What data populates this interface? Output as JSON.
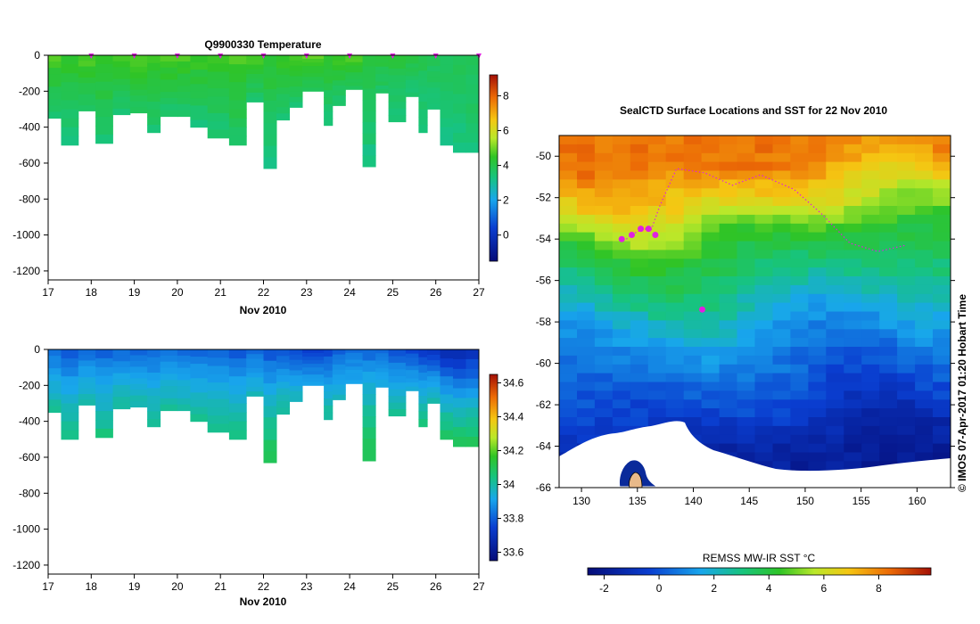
{
  "temperature": {
    "title": "Q9900330  Temperature",
    "x_ticks": [
      "17",
      "18",
      "19",
      "20",
      "21",
      "22",
      "23",
      "24",
      "25",
      "26",
      "27"
    ],
    "x_label": "Nov 2010",
    "y_ticks": [
      "0",
      "-200",
      "-400",
      "-600",
      "-800",
      "-1000",
      "-1200"
    ],
    "colorbar_ticks": [
      "8",
      "6",
      "4",
      "2",
      "0"
    ]
  },
  "salinity": {
    "x_ticks": [
      "17",
      "18",
      "19",
      "20",
      "21",
      "22",
      "23",
      "24",
      "25",
      "26",
      "27"
    ],
    "x_label": "Nov 2010",
    "y_ticks": [
      "0",
      "-200",
      "-400",
      "-600",
      "-800",
      "-1000",
      "-1200"
    ],
    "colorbar_ticks": [
      "34.6",
      "34.4",
      "34.2",
      "34",
      "33.8",
      "33.6"
    ]
  },
  "map": {
    "title": "SealCTD Surface Locations and SST for 22 Nov 2010",
    "lon_ticks": [
      "130",
      "135",
      "140",
      "145",
      "150",
      "155",
      "160"
    ],
    "lat_ticks": [
      "-50",
      "-52",
      "-54",
      "-56",
      "-58",
      "-60",
      "-62",
      "-64",
      "-66"
    ],
    "colorbar_label": "REMSS MW-IR SST °C",
    "colorbar_ticks": [
      "-2",
      "0",
      "2",
      "4",
      "6",
      "8"
    ],
    "credit": "© IMOS 07-Apr-2017 01:20 Hobart Time"
  },
  "chart_data": [
    {
      "type": "heatmap",
      "title": "Q9900330  Temperature",
      "xlabel": "Nov 2010",
      "ylabel": "",
      "xlim": [
        17,
        27
      ],
      "ylim": [
        -1250,
        0
      ],
      "color_range": [
        -1.5,
        9.2
      ],
      "profiles": [
        {
          "day": 17.0,
          "max_depth": 350,
          "surface_value": 4.8,
          "deep_value": 3.5
        },
        {
          "day": 17.3,
          "max_depth": 500,
          "surface_value": 4.6,
          "deep_value": 3.3
        },
        {
          "day": 17.7,
          "max_depth": 310,
          "surface_value": 4.9,
          "deep_value": 3.6
        },
        {
          "day": 18.1,
          "max_depth": 490,
          "surface_value": 4.7,
          "deep_value": 3.4
        },
        {
          "day": 18.5,
          "max_depth": 330,
          "surface_value": 4.8,
          "deep_value": 3.5
        },
        {
          "day": 18.9,
          "max_depth": 320,
          "surface_value": 4.9,
          "deep_value": 3.6
        },
        {
          "day": 19.3,
          "max_depth": 430,
          "surface_value": 4.8,
          "deep_value": 3.4
        },
        {
          "day": 19.6,
          "max_depth": 340,
          "surface_value": 4.9,
          "deep_value": 3.5
        },
        {
          "day": 20.0,
          "max_depth": 340,
          "surface_value": 4.8,
          "deep_value": 3.5
        },
        {
          "day": 20.3,
          "max_depth": 400,
          "surface_value": 4.7,
          "deep_value": 3.4
        },
        {
          "day": 20.7,
          "max_depth": 460,
          "surface_value": 4.8,
          "deep_value": 3.4
        },
        {
          "day": 21.2,
          "max_depth": 500,
          "surface_value": 4.9,
          "deep_value": 3.5
        },
        {
          "day": 21.6,
          "max_depth": 260,
          "surface_value": 4.8,
          "deep_value": 3.6
        },
        {
          "day": 22.0,
          "max_depth": 630,
          "surface_value": 4.5,
          "deep_value": 3.2
        },
        {
          "day": 22.3,
          "max_depth": 360,
          "surface_value": 4.7,
          "deep_value": 3.4
        },
        {
          "day": 22.6,
          "max_depth": 290,
          "surface_value": 4.8,
          "deep_value": 3.5
        },
        {
          "day": 22.9,
          "max_depth": 200,
          "surface_value": 4.9,
          "deep_value": 3.7
        },
        {
          "day": 23.4,
          "max_depth": 390,
          "surface_value": 4.6,
          "deep_value": 3.4
        },
        {
          "day": 23.6,
          "max_depth": 280,
          "surface_value": 4.7,
          "deep_value": 3.5
        },
        {
          "day": 23.9,
          "max_depth": 190,
          "surface_value": 4.9,
          "deep_value": 3.7
        },
        {
          "day": 24.3,
          "max_depth": 620,
          "surface_value": 4.4,
          "deep_value": 3.2
        },
        {
          "day": 24.6,
          "max_depth": 210,
          "surface_value": 4.3,
          "deep_value": 3.6
        },
        {
          "day": 24.9,
          "max_depth": 370,
          "surface_value": 4.2,
          "deep_value": 3.4
        },
        {
          "day": 25.3,
          "max_depth": 230,
          "surface_value": 4.1,
          "deep_value": 3.5
        },
        {
          "day": 25.6,
          "max_depth": 430,
          "surface_value": 4.0,
          "deep_value": 3.3
        },
        {
          "day": 25.8,
          "max_depth": 300,
          "surface_value": 4.0,
          "deep_value": 3.4
        },
        {
          "day": 26.1,
          "max_depth": 500,
          "surface_value": 3.9,
          "deep_value": 3.3
        },
        {
          "day": 26.4,
          "max_depth": 540,
          "surface_value": 3.9,
          "deep_value": 3.3
        },
        {
          "day": 26.7,
          "max_depth": 540,
          "surface_value": 4.0,
          "deep_value": 3.4
        }
      ],
      "surfacing_markers_days": [
        18,
        19,
        20,
        21,
        22,
        23,
        24,
        25,
        26,
        27
      ],
      "colorbar": {
        "ticks": [
          0,
          2,
          4,
          6,
          8
        ],
        "range": [
          -1.5,
          9.2
        ]
      }
    },
    {
      "type": "heatmap",
      "title": "",
      "xlabel": "Nov 2010",
      "ylabel": "",
      "xlim": [
        17,
        27
      ],
      "ylim": [
        -1250,
        0
      ],
      "color_range": [
        33.55,
        34.65
      ],
      "profiles": [
        {
          "day": 17.0,
          "max_depth": 350,
          "surface_value": 33.8,
          "deep_value": 34.02
        },
        {
          "day": 17.3,
          "max_depth": 500,
          "surface_value": 33.78,
          "deep_value": 34.05
        },
        {
          "day": 17.7,
          "max_depth": 310,
          "surface_value": 33.8,
          "deep_value": 34.0
        },
        {
          "day": 18.1,
          "max_depth": 490,
          "surface_value": 33.79,
          "deep_value": 34.05
        },
        {
          "day": 18.5,
          "max_depth": 330,
          "surface_value": 33.8,
          "deep_value": 34.01
        },
        {
          "day": 18.9,
          "max_depth": 320,
          "surface_value": 33.8,
          "deep_value": 34.0
        },
        {
          "day": 19.3,
          "max_depth": 430,
          "surface_value": 33.8,
          "deep_value": 34.03
        },
        {
          "day": 19.6,
          "max_depth": 340,
          "surface_value": 33.81,
          "deep_value": 34.01
        },
        {
          "day": 20.0,
          "max_depth": 340,
          "surface_value": 33.8,
          "deep_value": 34.01
        },
        {
          "day": 20.3,
          "max_depth": 400,
          "surface_value": 33.8,
          "deep_value": 34.03
        },
        {
          "day": 20.7,
          "max_depth": 460,
          "surface_value": 33.79,
          "deep_value": 34.04
        },
        {
          "day": 21.2,
          "max_depth": 500,
          "surface_value": 33.78,
          "deep_value": 34.05
        },
        {
          "day": 21.6,
          "max_depth": 260,
          "surface_value": 33.8,
          "deep_value": 33.98
        },
        {
          "day": 22.0,
          "max_depth": 630,
          "surface_value": 33.77,
          "deep_value": 34.12
        },
        {
          "day": 22.3,
          "max_depth": 360,
          "surface_value": 33.76,
          "deep_value": 34.02
        },
        {
          "day": 22.6,
          "max_depth": 290,
          "surface_value": 33.74,
          "deep_value": 33.99
        },
        {
          "day": 22.9,
          "max_depth": 200,
          "surface_value": 33.72,
          "deep_value": 33.92
        },
        {
          "day": 23.4,
          "max_depth": 390,
          "surface_value": 33.74,
          "deep_value": 34.03
        },
        {
          "day": 23.6,
          "max_depth": 280,
          "surface_value": 33.78,
          "deep_value": 33.98
        },
        {
          "day": 23.9,
          "max_depth": 190,
          "surface_value": 33.82,
          "deep_value": 33.92
        },
        {
          "day": 24.3,
          "max_depth": 620,
          "surface_value": 33.8,
          "deep_value": 34.12
        },
        {
          "day": 24.6,
          "max_depth": 210,
          "surface_value": 33.8,
          "deep_value": 33.93
        },
        {
          "day": 24.9,
          "max_depth": 370,
          "surface_value": 33.77,
          "deep_value": 34.02
        },
        {
          "day": 25.3,
          "max_depth": 230,
          "surface_value": 33.74,
          "deep_value": 33.95
        },
        {
          "day": 25.6,
          "max_depth": 430,
          "surface_value": 33.72,
          "deep_value": 34.05
        },
        {
          "day": 25.8,
          "max_depth": 300,
          "surface_value": 33.7,
          "deep_value": 34.0
        },
        {
          "day": 26.1,
          "max_depth": 500,
          "surface_value": 33.66,
          "deep_value": 34.1
        },
        {
          "day": 26.4,
          "max_depth": 540,
          "surface_value": 33.64,
          "deep_value": 34.12
        },
        {
          "day": 26.7,
          "max_depth": 540,
          "surface_value": 33.66,
          "deep_value": 34.12
        }
      ],
      "colorbar": {
        "ticks": [
          33.6,
          33.8,
          34.0,
          34.2,
          34.4,
          34.6
        ],
        "range": [
          33.55,
          34.65
        ]
      }
    },
    {
      "type": "heatmap",
      "title": "SealCTD Surface Locations and SST for 22 Nov 2010",
      "xlabel": "",
      "ylabel": "",
      "lon_range": [
        128,
        163
      ],
      "lat_range": [
        -66,
        -49
      ],
      "color_range": [
        -2.6,
        9.9
      ],
      "sst_by_latitude": [
        {
          "lat": -50,
          "sst": 8.2
        },
        {
          "lat": -52,
          "sst": 6.5
        },
        {
          "lat": -54,
          "sst": 4.2
        },
        {
          "lat": -56,
          "sst": 3.0
        },
        {
          "lat": -58,
          "sst": 1.6
        },
        {
          "lat": -60,
          "sst": 0.6
        },
        {
          "lat": -62,
          "sst": -0.3
        },
        {
          "lat": -64,
          "sst": -1.5
        },
        {
          "lat": -66,
          "sst": -1.9
        }
      ],
      "seal_track": [
        {
          "lon": 134.0,
          "lat": -54.0
        },
        {
          "lon": 134.8,
          "lat": -53.7
        },
        {
          "lon": 135.6,
          "lat": -53.5
        },
        {
          "lon": 136.2,
          "lat": -53.6
        },
        {
          "lon": 137.0,
          "lat": -52.4
        },
        {
          "lon": 138.5,
          "lat": -50.6
        },
        {
          "lon": 141.0,
          "lat": -50.8
        },
        {
          "lon": 143.5,
          "lat": -51.4
        },
        {
          "lon": 146.0,
          "lat": -50.9
        },
        {
          "lon": 149.0,
          "lat": -51.6
        },
        {
          "lon": 151.5,
          "lat": -52.8
        },
        {
          "lon": 154.0,
          "lat": -54.2
        },
        {
          "lon": 156.5,
          "lat": -54.6
        },
        {
          "lon": 159.0,
          "lat": -54.3
        }
      ],
      "surface_locations": [
        {
          "lon": 133.6,
          "lat": -54.0
        },
        {
          "lon": 134.5,
          "lat": -53.8
        },
        {
          "lon": 135.3,
          "lat": -53.5
        },
        {
          "lon": 136.0,
          "lat": -53.5
        },
        {
          "lon": 136.6,
          "lat": -53.8
        },
        {
          "lon": 140.8,
          "lat": -57.4
        }
      ],
      "colorbar": {
        "ticks": [
          -2,
          0,
          2,
          4,
          6,
          8
        ],
        "range": [
          -2.6,
          9.9
        ]
      }
    }
  ]
}
